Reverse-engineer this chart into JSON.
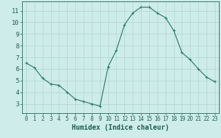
{
  "x": [
    0,
    1,
    2,
    3,
    4,
    5,
    6,
    7,
    8,
    9,
    10,
    11,
    12,
    13,
    14,
    15,
    16,
    17,
    18,
    19,
    20,
    21,
    22,
    23
  ],
  "y": [
    6.5,
    6.1,
    5.2,
    4.7,
    4.6,
    4.0,
    3.4,
    3.2,
    3.0,
    2.8,
    6.2,
    7.6,
    9.8,
    10.8,
    11.3,
    11.3,
    10.8,
    10.4,
    9.3,
    7.4,
    6.8,
    6.0,
    5.3,
    4.9
  ],
  "line_color": "#2e7d6e",
  "marker": "+",
  "marker_size": 3,
  "marker_linewidth": 0.8,
  "line_width": 0.9,
  "bg_color": "#ceecea",
  "grid_color": "#aed4d0",
  "xlabel": "Humidex (Indice chaleur)",
  "xlim": [
    -0.5,
    23.5
  ],
  "ylim": [
    2.2,
    11.8
  ],
  "yticks": [
    3,
    4,
    5,
    6,
    7,
    8,
    9,
    10,
    11
  ],
  "xticks": [
    0,
    1,
    2,
    3,
    4,
    5,
    6,
    7,
    8,
    9,
    10,
    11,
    12,
    13,
    14,
    15,
    16,
    17,
    18,
    19,
    20,
    21,
    22,
    23
  ],
  "tick_color": "#1a5c52",
  "xlabel_fontsize": 7,
  "xtick_fontsize": 5.5,
  "ytick_fontsize": 6.5
}
